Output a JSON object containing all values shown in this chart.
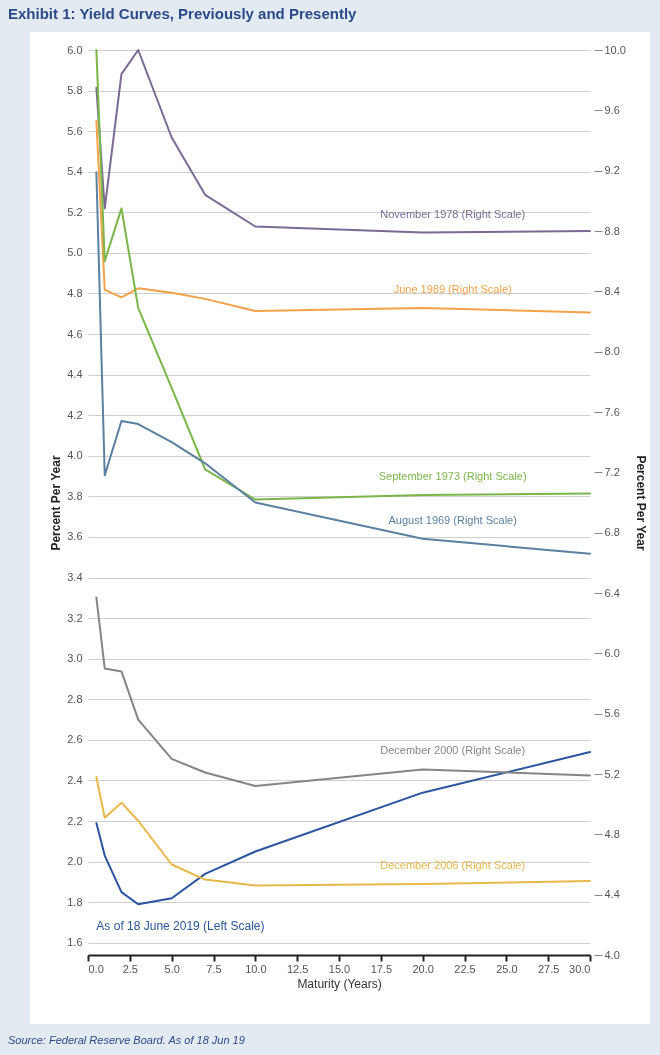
{
  "chart_data": {
    "type": "line",
    "title": "Exhibit 1: Yield Curves, Previously and Presently",
    "xlabel": "Maturity (Years)",
    "ylabel": "Percent Per Year",
    "y2label": "Percent Per Year",
    "x": [
      0.5,
      1,
      2,
      3,
      5,
      7,
      10,
      20,
      30
    ],
    "xlim": [
      0,
      30
    ],
    "xticks": [
      {
        "value": 0,
        "label": "0.0"
      },
      2.5,
      {
        "value": 5,
        "label": "5.0"
      },
      7.5,
      {
        "value": 10,
        "label": "10.0"
      },
      12.5,
      {
        "value": 15,
        "label": "15.0"
      },
      17.5,
      {
        "value": 20,
        "label": "20.0"
      },
      22.5,
      {
        "value": 25,
        "label": "25.0"
      },
      27.5,
      {
        "value": 30,
        "label": "30.0"
      }
    ],
    "ylim": [
      1.54,
      6.0
    ],
    "yticks": [
      1.6,
      1.8,
      {
        "value": 2,
        "label": "2.0"
      },
      2.2,
      2.4,
      2.6,
      2.8,
      {
        "value": 3,
        "label": "3.0"
      },
      3.2,
      3.4,
      3.6,
      3.8,
      {
        "value": 4,
        "label": "4.0"
      },
      4.2,
      4.4,
      4.6,
      4.8,
      {
        "value": 5,
        "label": "5.0"
      },
      5.2,
      5.4,
      5.6,
      5.8,
      {
        "value": 6,
        "label": "6.0"
      }
    ],
    "y2lim": [
      4.0,
      10.0
    ],
    "y2ticks": [
      {
        "value": 4,
        "label": "4.0"
      },
      4.4,
      4.8,
      5.2,
      5.6,
      {
        "value": 6,
        "label": "6.0"
      },
      6.4,
      6.8,
      7.2,
      7.6,
      {
        "value": 8,
        "label": "8.0"
      },
      8.4,
      8.8,
      9.2,
      9.6,
      {
        "value": 10,
        "label": "10.0"
      }
    ],
    "grid": "y",
    "series": [
      {
        "name": "November 1978 (Right Scale)",
        "color": "#7b6a94",
        "axis": "y2",
        "values": [
          9.75,
          8.95,
          9.84,
          10.0,
          9.42,
          9.04,
          8.83,
          8.79,
          8.8
        ]
      },
      {
        "name": "June 1989 (Right Scale)",
        "color": "#f4a24a",
        "axis": "y2",
        "values": [
          9.53,
          8.41,
          8.36,
          8.42,
          8.39,
          8.35,
          8.27,
          8.29,
          8.26
        ]
      },
      {
        "name": "September 1973 (Right Scale)",
        "color": "#7ab648",
        "axis": "y2",
        "values": [
          10.0,
          8.6,
          8.95,
          8.29,
          7.76,
          7.22,
          7.02,
          7.05,
          7.06
        ]
      },
      {
        "name": "August 1969 (Right Scale)",
        "color": "#5b80a0",
        "axis": "y2",
        "values": [
          9.19,
          7.18,
          7.54,
          7.52,
          7.4,
          7.26,
          7.0,
          6.76,
          6.66
        ]
      },
      {
        "name": "December 2000 (Right Scale)",
        "color": "#858585",
        "axis": "y2",
        "values": [
          6.37,
          5.9,
          5.88,
          5.56,
          5.3,
          5.21,
          5.12,
          5.23,
          5.19
        ]
      },
      {
        "name": "December 2006 (Right Scale)",
        "color": "#e8b84a",
        "axis": "y2",
        "values": [
          5.18,
          4.91,
          5.01,
          4.89,
          4.6,
          4.5,
          4.46,
          4.47,
          4.49
        ]
      },
      {
        "name": "As of 18 June 2019 (Left Scale)",
        "color": "#2b55a0",
        "axis": "y",
        "values": [
          2.19,
          2.03,
          1.85,
          1.79,
          1.82,
          1.94,
          2.05,
          2.34,
          2.54
        ]
      }
    ],
    "annotations": [
      "Source: Federal Reserve Board. As of 18  Jun 19"
    ]
  }
}
